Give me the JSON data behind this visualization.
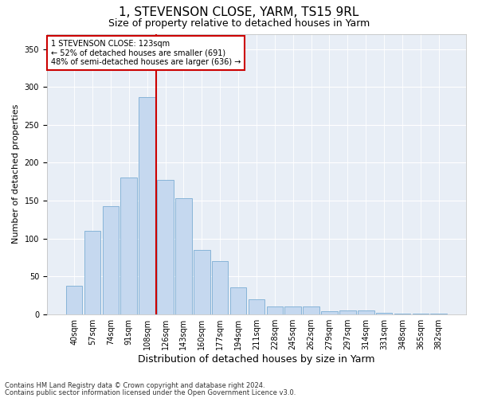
{
  "title1": "1, STEVENSON CLOSE, YARM, TS15 9RL",
  "title2": "Size of property relative to detached houses in Yarm",
  "xlabel": "Distribution of detached houses by size in Yarm",
  "ylabel": "Number of detached properties",
  "bar_labels": [
    "40sqm",
    "57sqm",
    "74sqm",
    "91sqm",
    "108sqm",
    "126sqm",
    "143sqm",
    "160sqm",
    "177sqm",
    "194sqm",
    "211sqm",
    "228sqm",
    "245sqm",
    "262sqm",
    "279sqm",
    "297sqm",
    "314sqm",
    "331sqm",
    "348sqm",
    "365sqm",
    "382sqm"
  ],
  "bar_values": [
    37,
    110,
    143,
    180,
    287,
    177,
    153,
    85,
    70,
    35,
    20,
    10,
    10,
    10,
    4,
    5,
    5,
    2,
    1,
    1,
    1
  ],
  "bar_color": "#c5d8ef",
  "bar_edge_color": "#7aadd4",
  "vline_color": "#cc0000",
  "annotation_text": "1 STEVENSON CLOSE: 123sqm\n← 52% of detached houses are smaller (691)\n48% of semi-detached houses are larger (636) →",
  "annotation_box_edge": "#cc0000",
  "annotation_box_face": "#ffffff",
  "ylim": [
    0,
    370
  ],
  "yticks": [
    0,
    50,
    100,
    150,
    200,
    250,
    300,
    350
  ],
  "plot_bg_color": "#e8eef6",
  "footer1": "Contains HM Land Registry data © Crown copyright and database right 2024.",
  "footer2": "Contains public sector information licensed under the Open Government Licence v3.0.",
  "title1_fontsize": 11,
  "title2_fontsize": 9,
  "xlabel_fontsize": 9,
  "ylabel_fontsize": 8,
  "tick_fontsize": 7,
  "annotation_fontsize": 7,
  "footer_fontsize": 6
}
